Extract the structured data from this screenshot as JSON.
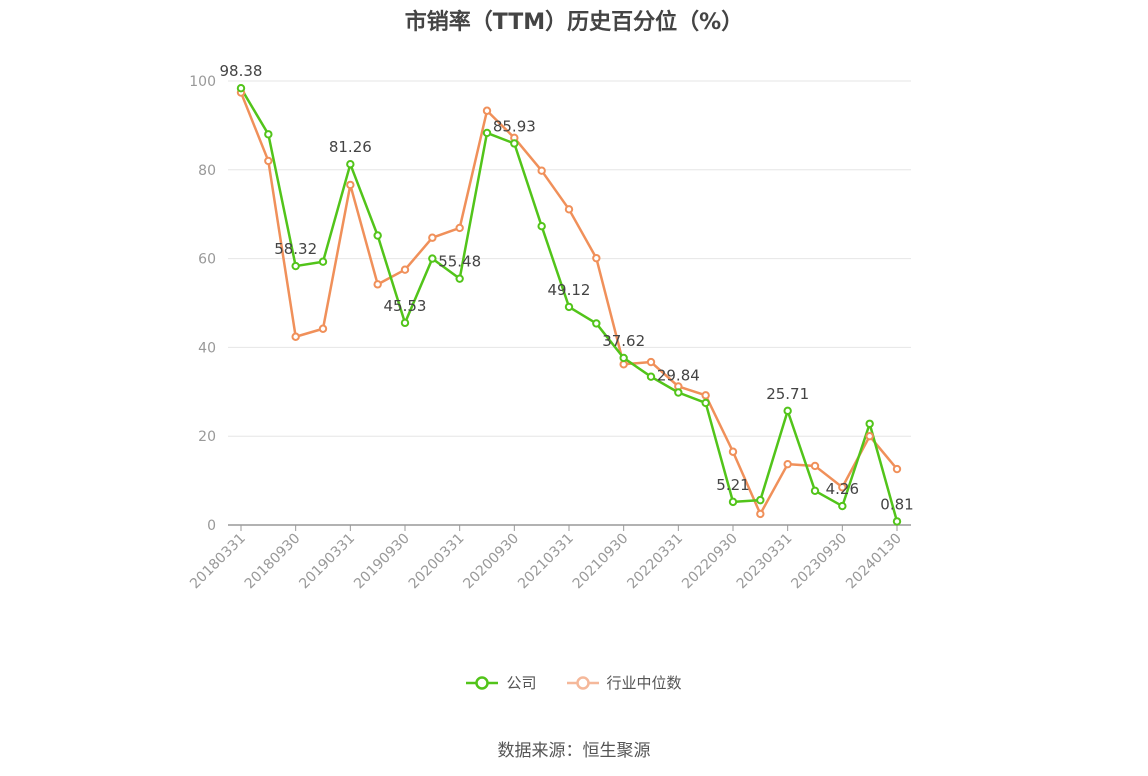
{
  "chart_data": {
    "type": "line",
    "title": "市销率（TTM）历史百分位（%）",
    "ylim": [
      0,
      100
    ],
    "yticks": [
      0,
      20,
      40,
      60,
      80,
      100
    ],
    "x_tick_labels": [
      "20180331",
      "20180930",
      "20190331",
      "20190930",
      "20200331",
      "20200930",
      "20210331",
      "20210930",
      "20220331",
      "20220930",
      "20230331",
      "20230930",
      "20240130"
    ],
    "x_tick_indices": [
      0,
      2,
      4,
      6,
      8,
      10,
      12,
      14,
      16,
      18,
      20,
      22,
      24
    ],
    "n_points": 25,
    "legend_position": "bottom",
    "series": [
      {
        "name": "公司",
        "color": "#52c41a",
        "values": [
          98.38,
          88.0,
          58.32,
          59.3,
          81.26,
          65.2,
          45.53,
          60.0,
          55.48,
          88.3,
          85.93,
          67.3,
          49.12,
          45.4,
          37.62,
          33.4,
          29.84,
          27.5,
          5.21,
          5.6,
          25.71,
          7.7,
          4.26,
          22.8,
          0.81
        ],
        "data_labels": {
          "0": "98.38",
          "2": "58.32",
          "4": "81.26",
          "6": "45.53",
          "8": "55.48",
          "10": "85.93",
          "12": "49.12",
          "14": "37.62",
          "16": "29.84",
          "18": "5.21",
          "20": "25.71",
          "22": "4.26",
          "24": "0.81"
        }
      },
      {
        "name": "行业中位数",
        "color": "#f0905a",
        "values": [
          97.4,
          82.0,
          42.4,
          44.2,
          76.6,
          54.2,
          57.5,
          64.7,
          66.9,
          93.3,
          87.2,
          79.8,
          71.1,
          60.1,
          36.2,
          36.7,
          31.2,
          29.2,
          16.5,
          2.5,
          13.7,
          13.3,
          8.5,
          20.0,
          12.6
        ]
      }
    ]
  },
  "source": "数据来源：恒生聚源"
}
